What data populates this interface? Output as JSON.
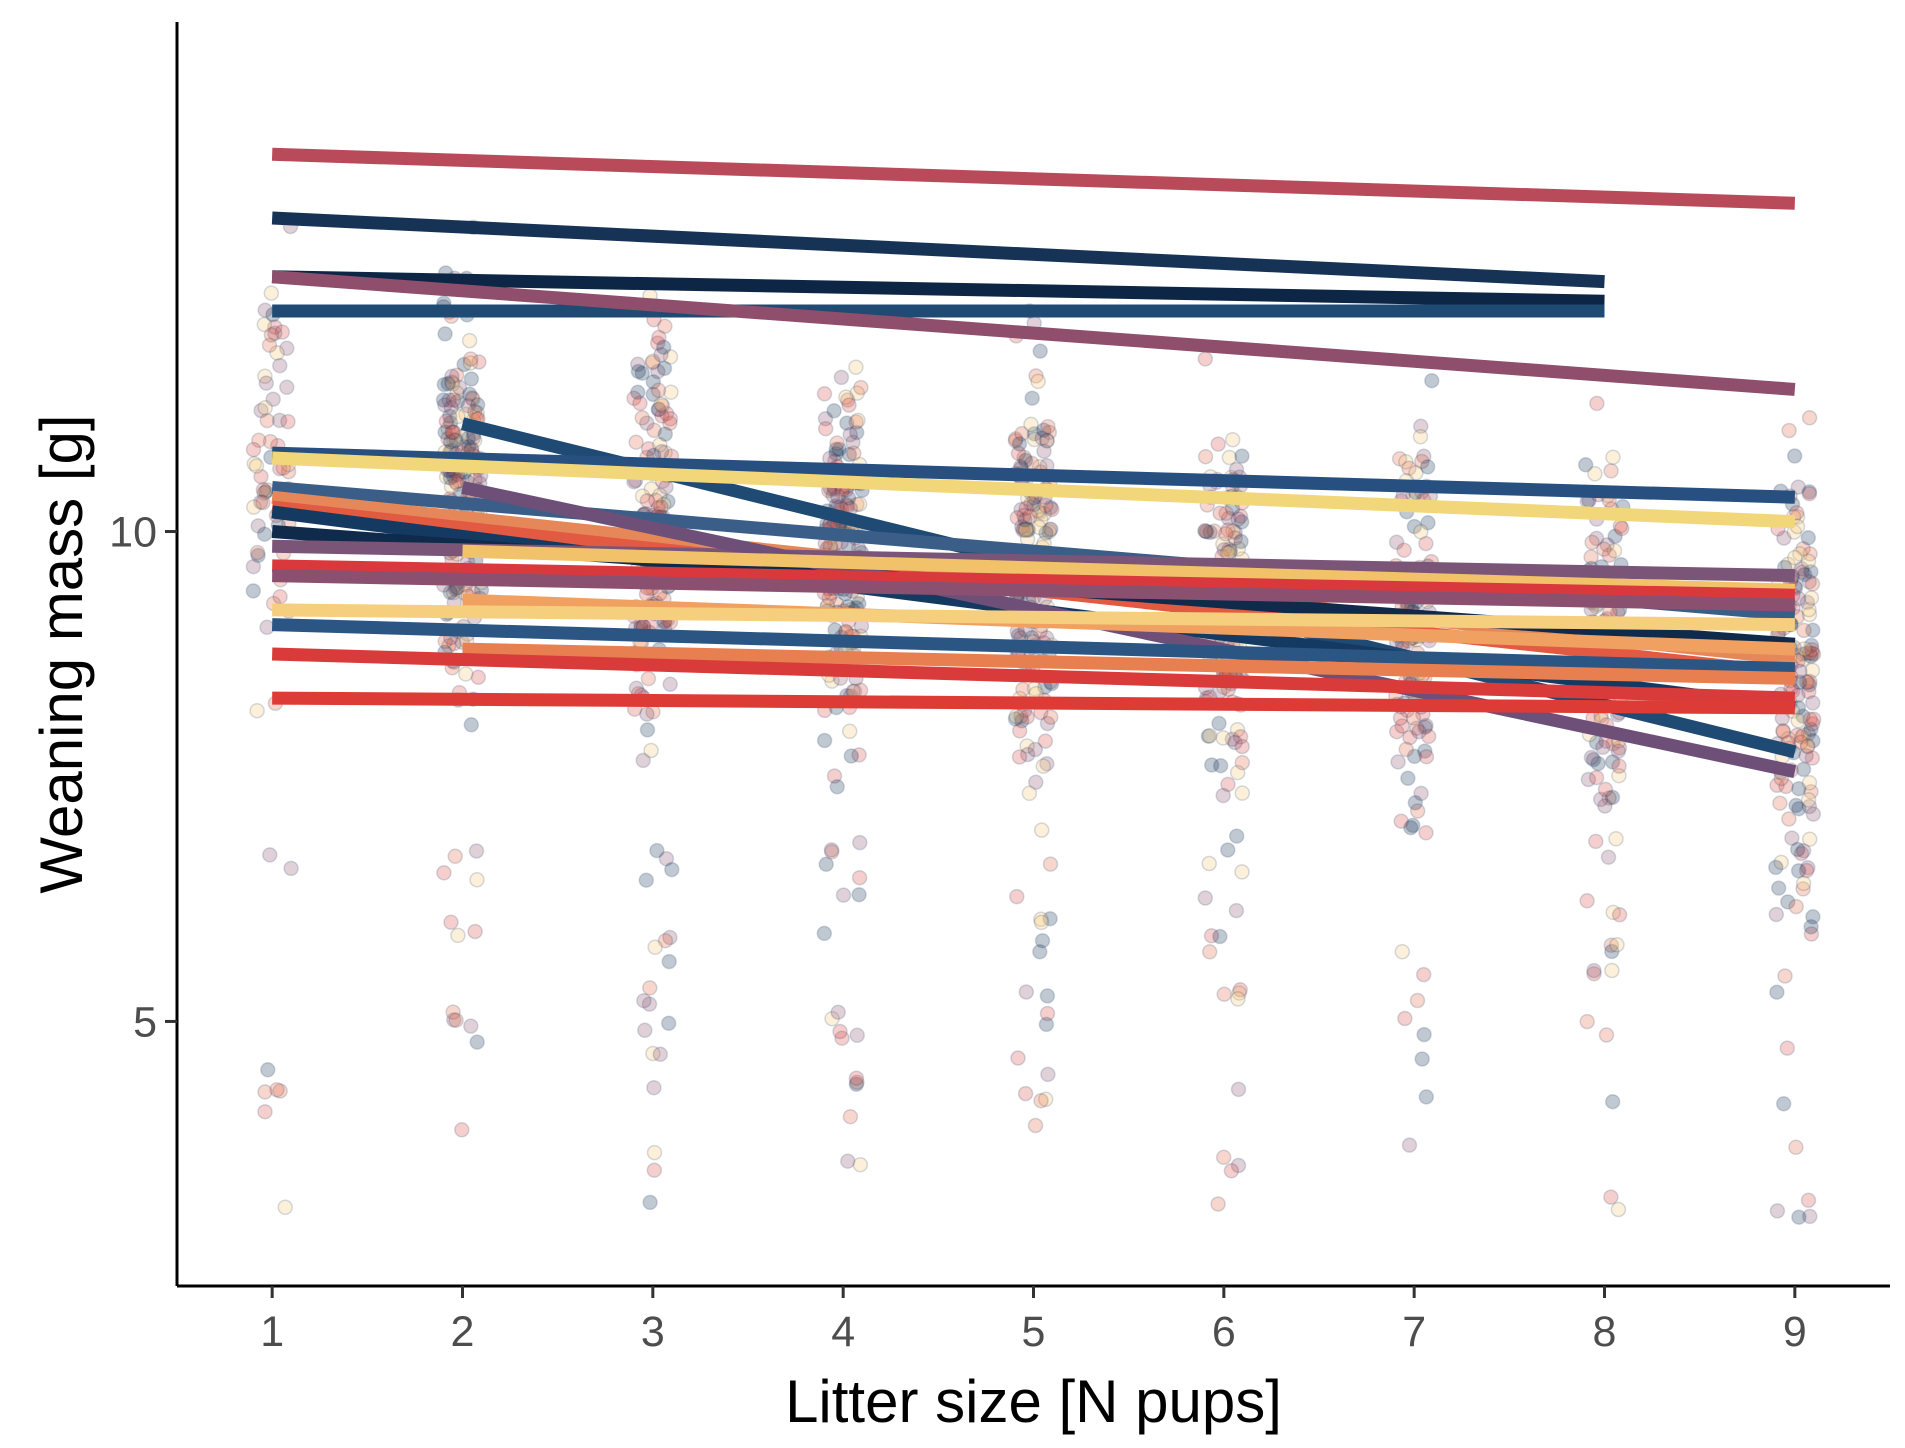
{
  "chart_data": {
    "type": "scatter",
    "xlabel": "Litter size [N pups]",
    "ylabel": "Weaning mass [g]",
    "x_ticks": [
      1,
      2,
      3,
      4,
      5,
      6,
      7,
      8,
      9
    ],
    "y_ticks": [
      5,
      10
    ],
    "xlim": [
      0.5,
      9.5
    ],
    "ylim": [
      2.3,
      15.2
    ],
    "grid": false,
    "legend": "none",
    "point_opacity": 0.28,
    "point_colors": [
      "#1b3a5c",
      "#d9534f",
      "#f5c87a",
      "#8e5a78",
      "#e46d4b"
    ],
    "regression_lines": [
      {
        "x": [
          1,
          9
        ],
        "y": [
          13.85,
          13.35
        ],
        "color": "#b94a5a"
      },
      {
        "x": [
          1,
          8
        ],
        "y": [
          13.2,
          12.55
        ],
        "color": "#163356"
      },
      {
        "x": [
          1,
          8
        ],
        "y": [
          12.6,
          12.35
        ],
        "color": "#0d2645"
      },
      {
        "x": [
          1,
          8
        ],
        "y": [
          12.25,
          12.25
        ],
        "color": "#1f4a73"
      },
      {
        "x": [
          1,
          9
        ],
        "y": [
          12.6,
          11.45
        ],
        "color": "#8e4e6c"
      },
      {
        "x": [
          2,
          9
        ],
        "y": [
          11.1,
          7.75
        ],
        "color": "#1f4a73"
      },
      {
        "x": [
          1,
          9
        ],
        "y": [
          10.8,
          10.35
        ],
        "color": "#275080"
      },
      {
        "x": [
          1,
          9
        ],
        "y": [
          10.75,
          10.1
        ],
        "color": "#f2d77a"
      },
      {
        "x": [
          1,
          9
        ],
        "y": [
          10.45,
          9.15
        ],
        "color": "#3b5e88"
      },
      {
        "x": [
          1,
          9
        ],
        "y": [
          10.35,
          8.7
        ],
        "color": "#e6875a"
      },
      {
        "x": [
          1,
          9
        ],
        "y": [
          10.25,
          8.55
        ],
        "color": "#e25a42"
      },
      {
        "x": [
          1,
          9
        ],
        "y": [
          10.2,
          8.2
        ],
        "color": "#153a62"
      },
      {
        "x": [
          1,
          9
        ],
        "y": [
          10.0,
          8.85
        ],
        "color": "#0f2a4a"
      },
      {
        "x": [
          1,
          9
        ],
        "y": [
          9.85,
          9.55
        ],
        "color": "#7a5577"
      },
      {
        "x": [
          2,
          9
        ],
        "y": [
          10.45,
          7.55
        ],
        "color": "#6e4f78"
      },
      {
        "x": [
          2,
          9
        ],
        "y": [
          9.8,
          9.4
        ],
        "color": "#f2c26a"
      },
      {
        "x": [
          1,
          9
        ],
        "y": [
          9.65,
          9.35
        ],
        "color": "#d9393d"
      },
      {
        "x": [
          1,
          9
        ],
        "y": [
          9.55,
          9.25
        ],
        "color": "#8b5070"
      },
      {
        "x": [
          2,
          9
        ],
        "y": [
          9.3,
          8.8
        ],
        "color": "#f0a060"
      },
      {
        "x": [
          1,
          9
        ],
        "y": [
          9.2,
          9.05
        ],
        "color": "#f5cf7e"
      },
      {
        "x": [
          1,
          9
        ],
        "y": [
          9.05,
          8.6
        ],
        "color": "#2b5583"
      },
      {
        "x": [
          2,
          9
        ],
        "y": [
          8.8,
          8.5
        ],
        "color": "#e87f50"
      },
      {
        "x": [
          1,
          9
        ],
        "y": [
          8.75,
          8.3
        ],
        "color": "#d93a3a"
      },
      {
        "x": [
          1,
          9
        ],
        "y": [
          8.3,
          8.2
        ],
        "color": "#dd3b36"
      }
    ]
  }
}
